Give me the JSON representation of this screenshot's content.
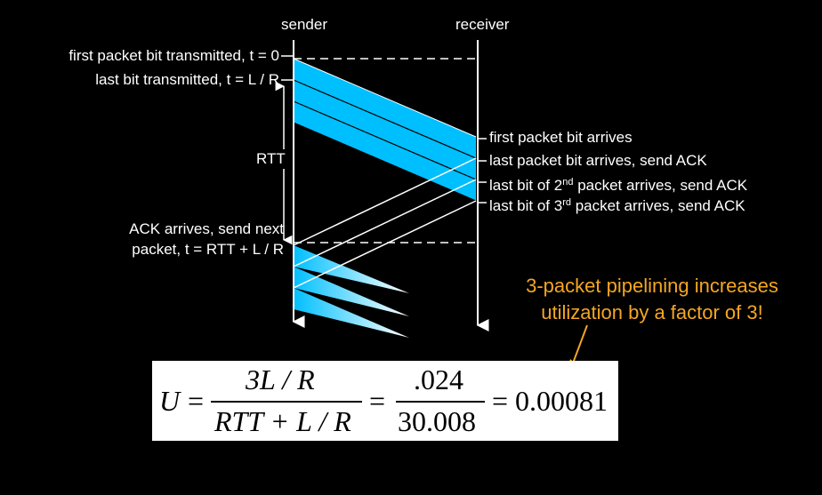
{
  "columns": {
    "sender": "sender",
    "receiver": "receiver"
  },
  "sender_labels": {
    "first_bit": "first packet bit transmitted, t = 0",
    "last_bit": "last bit transmitted, t = L / R",
    "rtt": "RTT",
    "ack_line1": "ACK arrives, send next",
    "ack_line2": "packet, t = RTT + L / R"
  },
  "receiver_labels": {
    "first_arrives": "first packet bit arrives",
    "last_arrives": "last packet bit arrives, send ACK",
    "second_pre": "last bit of 2",
    "second_sup": "nd",
    "second_post": " packet arrives, send ACK",
    "third_pre": "last bit of 3",
    "third_sup": "rd",
    "third_post": " packet arrives, send ACK"
  },
  "note": {
    "line1": "3-packet pipelining increases",
    "line2": "utilization by a factor of 3!"
  },
  "formula": {
    "lhs": "U",
    "eq1": "=",
    "num1": "3L / R",
    "den1": "RTT + L / R",
    "eq2": "=",
    "num2": ".024",
    "den2": "30.008",
    "eq3": "= 0.00081"
  },
  "colors": {
    "packet": "#00bfff",
    "packet_fade": "#ffffff",
    "note": "#f5a623",
    "background": "#000000"
  }
}
